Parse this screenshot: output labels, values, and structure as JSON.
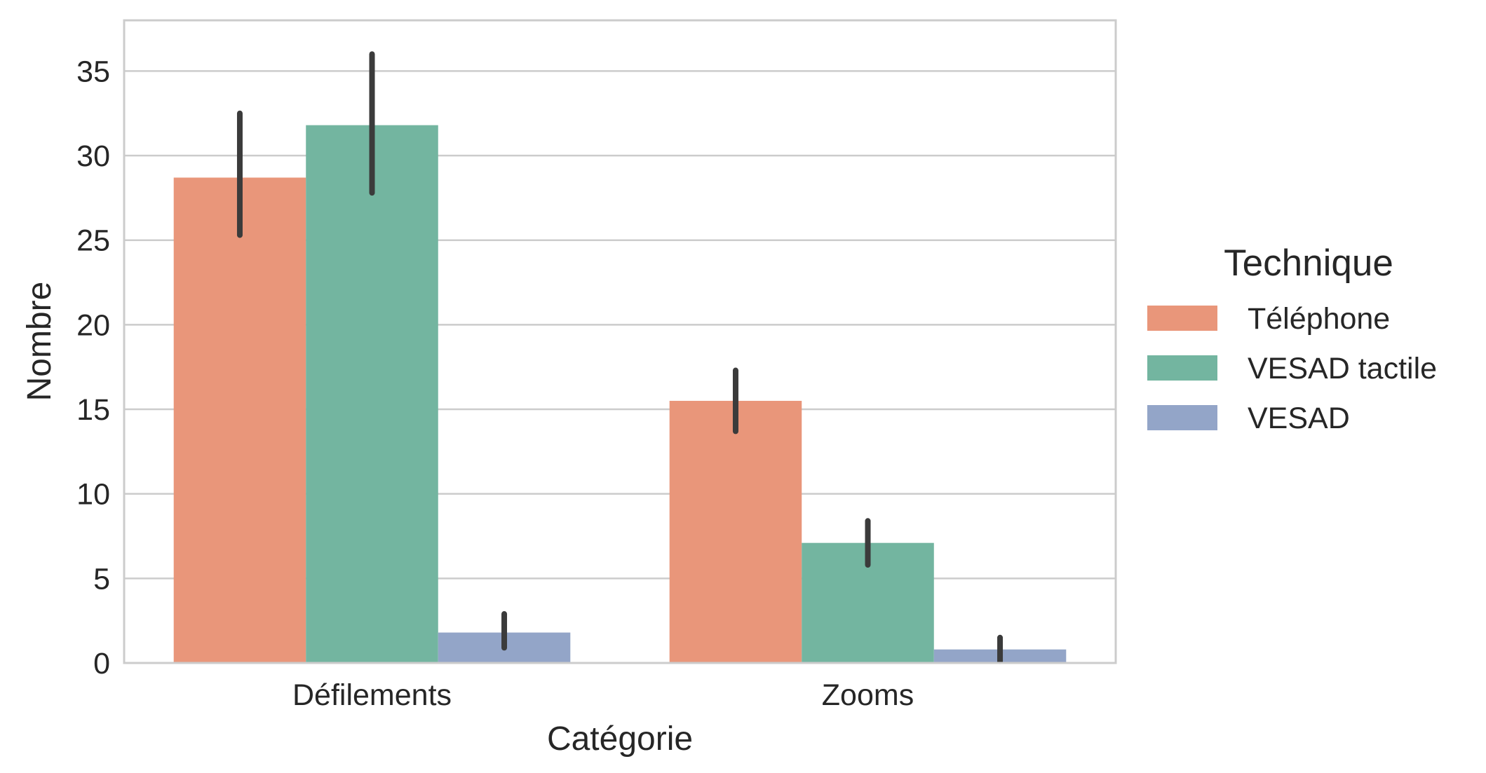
{
  "chart_data": {
    "type": "bar",
    "xlabel": "Catégorie",
    "ylabel": "Nombre",
    "categories": [
      "Défilements",
      "Zooms"
    ],
    "ylim": [
      0,
      38
    ],
    "yticks": [
      0,
      5,
      10,
      15,
      20,
      25,
      30,
      35
    ],
    "grid": "horizontal",
    "legend": {
      "title": "Technique",
      "placement": "right"
    },
    "series": [
      {
        "name": "Téléphone",
        "color": "#E9967A",
        "values": [
          28.7,
          15.5
        ],
        "error_low": [
          25.3,
          13.7
        ],
        "error_high": [
          32.5,
          17.3
        ]
      },
      {
        "name": "VESAD tactile",
        "color": "#73B5A0",
        "values": [
          31.8,
          7.1
        ],
        "error_low": [
          27.8,
          5.8
        ],
        "error_high": [
          36.0,
          8.4
        ]
      },
      {
        "name": "VESAD",
        "color": "#93A5C8",
        "values": [
          1.8,
          0.8
        ],
        "error_low": [
          0.9,
          0.1
        ],
        "error_high": [
          2.9,
          1.5
        ]
      }
    ],
    "error_bar_color": "#3b3b3b",
    "gridline_color": "#cccccc",
    "frame_color": "#cccccc"
  }
}
